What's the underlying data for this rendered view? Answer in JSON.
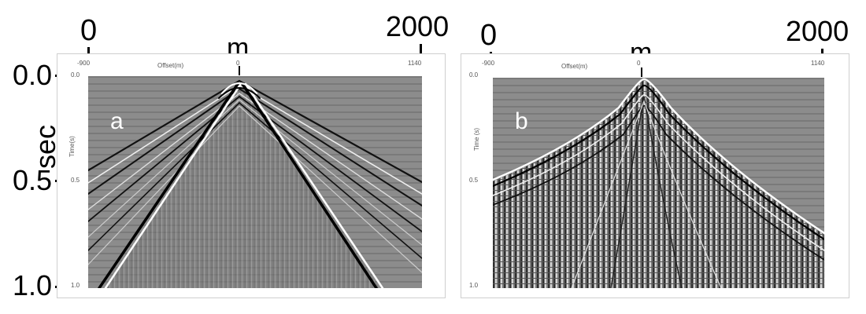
{
  "figure": {
    "outer_axis": {
      "x_start": "0",
      "x_end": "2000",
      "unit": "m",
      "y_ticks": [
        "0.0",
        "0.5",
        "1.0"
      ],
      "y_unit": "sec"
    },
    "panels": [
      {
        "letter": "a",
        "inner_xlabel": "Offset(m)",
        "inner_ylabel": "Time(s)",
        "inner_x_ticks": [
          "-900",
          "0",
          "1140"
        ],
        "inner_y_ticks": [
          "0.0",
          "0.5",
          "1.0"
        ]
      },
      {
        "letter": "b",
        "inner_xlabel": "Offset(m)",
        "inner_ylabel": "Time (s)",
        "inner_x_ticks": [
          "-900",
          "0",
          "1140"
        ],
        "inner_y_ticks": [
          "0.0",
          "0.5",
          "1.0"
        ]
      }
    ]
  }
}
